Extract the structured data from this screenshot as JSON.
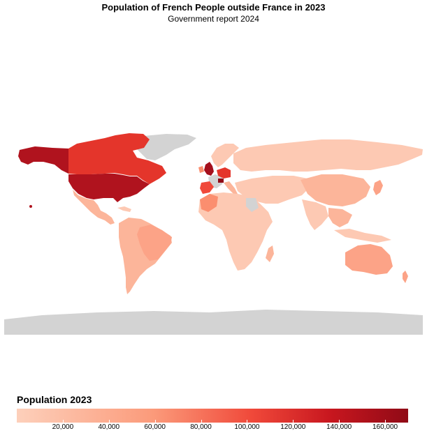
{
  "chart_data": {
    "type": "choropleth",
    "title": "Population of French People outside France in 2023",
    "subtitle": "Government report 2024",
    "legend": {
      "title": "Population 2023",
      "range": [
        0,
        170000
      ],
      "ticks": [
        "20,000",
        "40,000",
        "60,000",
        "80,000",
        "100,000",
        "120,000",
        "140,000",
        "160,000"
      ],
      "tick_values": [
        20000,
        40000,
        60000,
        80000,
        100000,
        120000,
        140000,
        160000
      ],
      "color_low": "#fdd0bb",
      "color_high": "#900a16",
      "no_data_color": "#d3d3d3"
    },
    "regions": [
      {
        "name": "United States",
        "value": 160000
      },
      {
        "name": "United Kingdom",
        "value": 150000
      },
      {
        "name": "Switzerland",
        "value": 170000
      },
      {
        "name": "Canada",
        "value": 110000
      },
      {
        "name": "Belgium",
        "value": 120000
      },
      {
        "name": "Germany",
        "value": 100000
      },
      {
        "name": "Spain",
        "value": 95000
      },
      {
        "name": "Morocco",
        "value": 45000
      },
      {
        "name": "Australia",
        "value": 35000
      },
      {
        "name": "Brazil",
        "value": 20000
      },
      {
        "name": "China",
        "value": 25000
      },
      {
        "name": "Russia",
        "value": 8000
      }
    ]
  }
}
